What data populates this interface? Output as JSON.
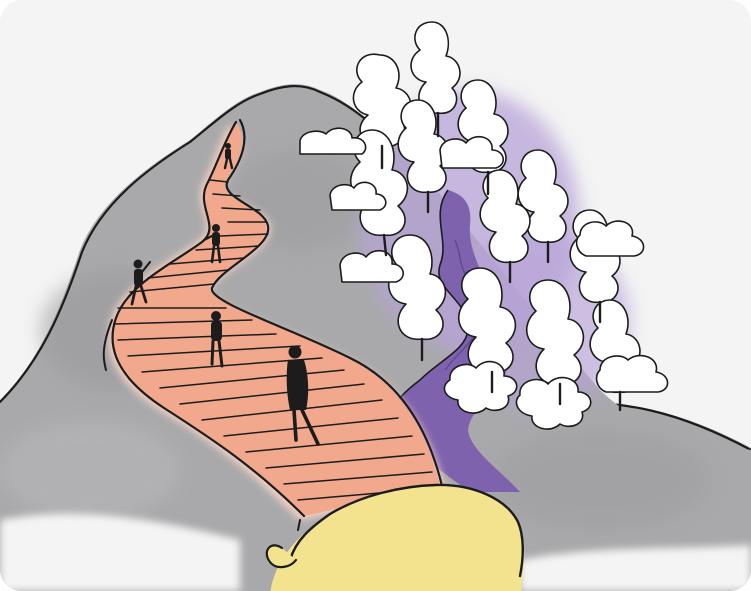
{
  "illustration": {
    "subject": "hill-path-forest-sketch",
    "colors": {
      "background": "#f4f4f4",
      "hill": "#a9a9ab",
      "hill_dark": "#8f8f92",
      "path": "#f1a88c",
      "path_edge": "#f7d3c3",
      "river": "#7e62ad",
      "forest_shade": "#b7a3d8",
      "tree_fill": "#ffffff",
      "ink": "#1c1c1c",
      "foreground_blob": "#f3e38f"
    }
  }
}
